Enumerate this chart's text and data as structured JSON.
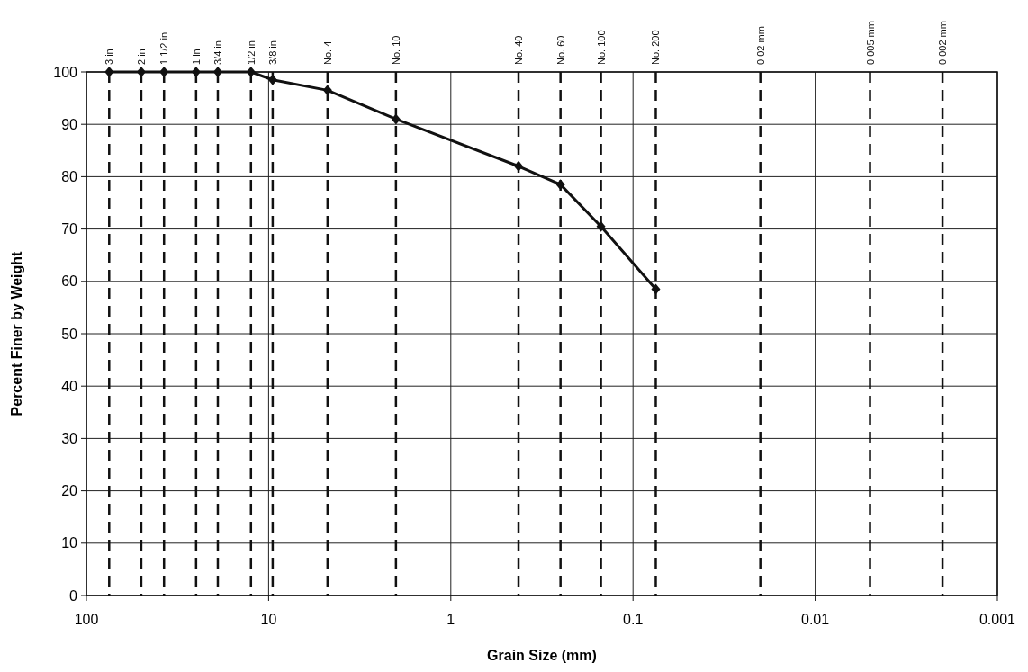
{
  "chart_data": {
    "type": "line",
    "xlabel": "Grain Size (mm)",
    "ylabel": "Percent Finer by Weight",
    "log": "x",
    "grid": true,
    "marker": "diamond",
    "line_style": "solid",
    "xlim": [
      100,
      0.001
    ],
    "xticks": [
      100,
      10,
      1,
      0.1,
      0.01,
      0.001
    ],
    "ylim": [
      0,
      100
    ],
    "yticks": [
      0,
      10,
      20,
      30,
      40,
      50,
      60,
      70,
      80,
      90,
      100
    ],
    "series": [
      {
        "color": "#111111",
        "x": [
          75,
          50,
          37.5,
          25,
          19,
          12.5,
          9.5,
          4.75,
          2.0,
          0.425,
          0.25,
          0.15,
          0.075
        ],
        "values": [
          100,
          100,
          100,
          100,
          100,
          100,
          98.5,
          96.5,
          91,
          82,
          78.5,
          70.5,
          58.5
        ]
      }
    ],
    "ref_lines": [
      {
        "axis": "x",
        "value": 75,
        "label": "3 in",
        "line_style": "dashed",
        "color": "#111111"
      },
      {
        "axis": "x",
        "value": 50,
        "label": "2 in",
        "line_style": "dashed",
        "color": "#111111"
      },
      {
        "axis": "x",
        "value": 37.5,
        "label": "1 1/2 in",
        "line_style": "dashed",
        "color": "#111111"
      },
      {
        "axis": "x",
        "value": 25,
        "label": "1 in",
        "line_style": "dashed",
        "color": "#111111"
      },
      {
        "axis": "x",
        "value": 19,
        "label": "3/4 in",
        "line_style": "dashed",
        "color": "#111111"
      },
      {
        "axis": "x",
        "value": 12.5,
        "label": "1/2 in",
        "line_style": "dashed",
        "color": "#111111"
      },
      {
        "axis": "x",
        "value": 9.5,
        "label": "3/8 in",
        "line_style": "dashed",
        "color": "#111111"
      },
      {
        "axis": "x",
        "value": 4.75,
        "label": "No. 4",
        "line_style": "dashed",
        "color": "#111111"
      },
      {
        "axis": "x",
        "value": 2.0,
        "label": "No. 10",
        "line_style": "dashed",
        "color": "#111111"
      },
      {
        "axis": "x",
        "value": 0.425,
        "label": "No. 40",
        "line_style": "dashed",
        "color": "#111111"
      },
      {
        "axis": "x",
        "value": 0.25,
        "label": "No. 60",
        "line_style": "dashed",
        "color": "#111111"
      },
      {
        "axis": "x",
        "value": 0.15,
        "label": "No. 100",
        "line_style": "dashed",
        "color": "#111111"
      },
      {
        "axis": "x",
        "value": 0.075,
        "label": "No. 200",
        "line_style": "dashed",
        "color": "#111111"
      },
      {
        "axis": "x",
        "value": 0.02,
        "label": "0.02 mm",
        "line_style": "dashed",
        "color": "#111111"
      },
      {
        "axis": "x",
        "value": 0.005,
        "label": "0.005 mm",
        "line_style": "dashed",
        "color": "#111111"
      },
      {
        "axis": "x",
        "value": 0.002,
        "label": "0.002 mm",
        "line_style": "dashed",
        "color": "#111111"
      }
    ]
  }
}
